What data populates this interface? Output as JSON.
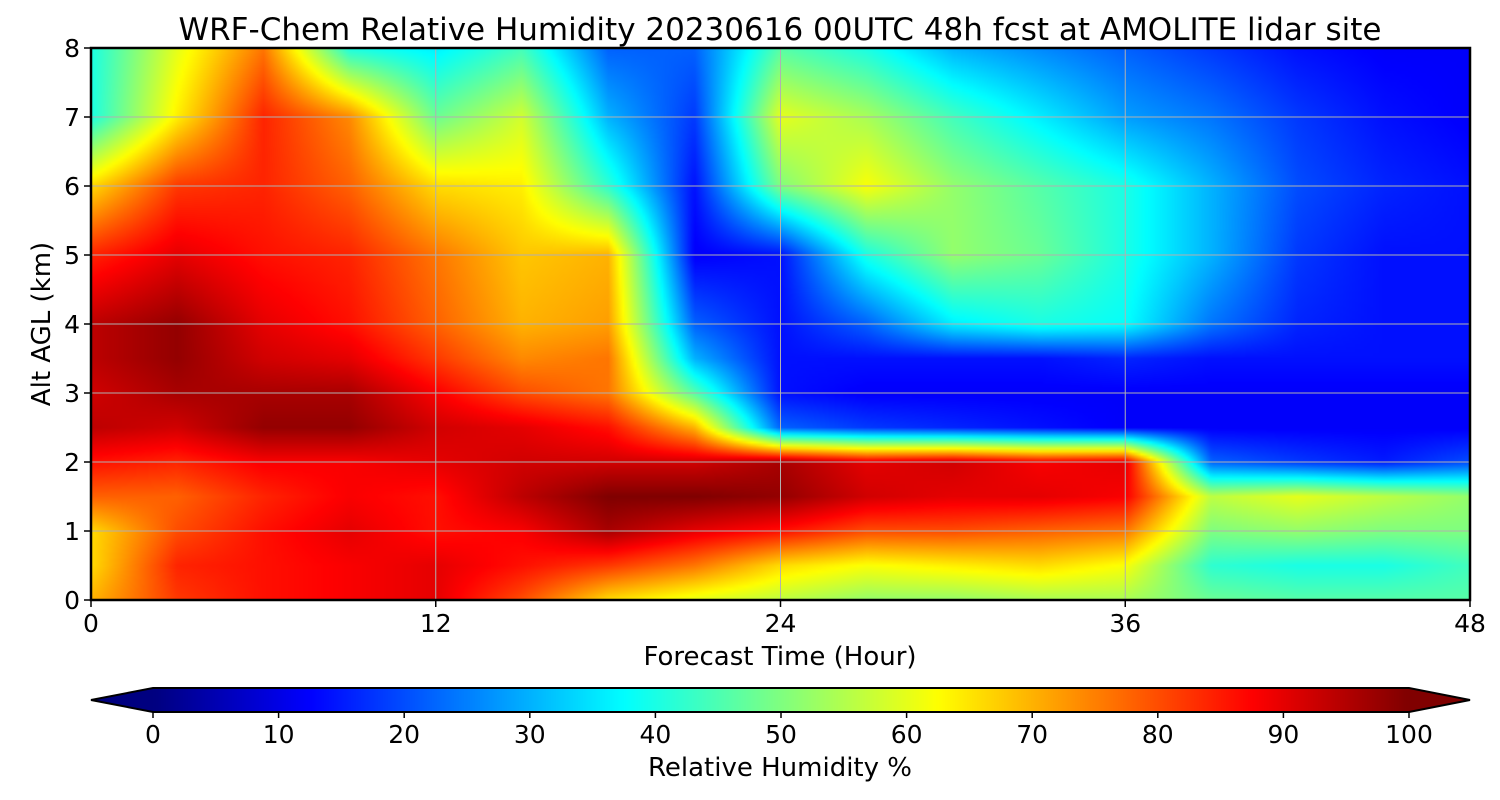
{
  "chart_data": {
    "type": "heatmap",
    "title": "WRF-Chem Relative Humidity 20230616 00UTC 48h fcst at AMOLITE lidar site",
    "xlabel": "Forecast Time (Hour)",
    "ylabel": "Alt AGL (km)",
    "xlim": [
      0,
      48
    ],
    "ylim": [
      0,
      8
    ],
    "xticks": [
      "0",
      "12",
      "24",
      "36",
      "48"
    ],
    "yticks": [
      "0",
      "1",
      "2",
      "3",
      "4",
      "5",
      "6",
      "7",
      "8"
    ],
    "grid": true,
    "colormap": "jet",
    "colorbar": {
      "label": "Relative Humidity %",
      "range": [
        0,
        100
      ],
      "extend": "both",
      "orientation": "horizontal",
      "placement": "bottom",
      "ticks": [
        "0",
        "10",
        "20",
        "30",
        "40",
        "50",
        "60",
        "70",
        "80",
        "90",
        "100"
      ]
    },
    "x": [
      0,
      3,
      6,
      9,
      12,
      15,
      18,
      21,
      24,
      27,
      30,
      33,
      36,
      39,
      42,
      45,
      48
    ],
    "y": [
      0,
      0.5,
      1,
      1.5,
      2,
      2.5,
      3,
      3.5,
      4,
      5,
      6,
      7,
      8
    ],
    "values": [
      [
        70,
        82,
        86,
        88,
        90,
        80,
        66,
        60,
        56,
        52,
        52,
        54,
        54,
        48,
        46,
        46,
        46
      ],
      [
        66,
        84,
        86,
        88,
        90,
        86,
        82,
        76,
        66,
        62,
        64,
        66,
        62,
        42,
        40,
        40,
        44
      ],
      [
        66,
        80,
        86,
        90,
        86,
        88,
        96,
        90,
        86,
        80,
        80,
        78,
        76,
        50,
        52,
        50,
        50
      ],
      [
        78,
        78,
        84,
        88,
        86,
        94,
        100,
        100,
        98,
        92,
        90,
        90,
        88,
        56,
        60,
        56,
        52
      ],
      [
        86,
        84,
        88,
        88,
        90,
        92,
        92,
        92,
        96,
        90,
        92,
        88,
        90,
        22,
        18,
        15,
        20
      ],
      [
        94,
        92,
        98,
        98,
        92,
        90,
        86,
        70,
        22,
        18,
        16,
        14,
        12,
        12,
        12,
        12,
        12
      ],
      [
        92,
        96,
        96,
        96,
        88,
        80,
        76,
        46,
        14,
        12,
        12,
        12,
        12,
        12,
        12,
        12,
        12
      ],
      [
        94,
        98,
        92,
        90,
        82,
        74,
        76,
        30,
        14,
        14,
        14,
        14,
        16,
        14,
        14,
        14,
        14
      ],
      [
        94,
        98,
        90,
        86,
        78,
        70,
        72,
        22,
        14,
        22,
        36,
        40,
        38,
        24,
        16,
        14,
        14
      ],
      [
        84,
        90,
        86,
        84,
        76,
        68,
        70,
        12,
        14,
        40,
        52,
        48,
        40,
        30,
        18,
        14,
        14
      ],
      [
        66,
        82,
        84,
        78,
        66,
        64,
        42,
        14,
        50,
        62,
        52,
        46,
        40,
        30,
        20,
        16,
        14
      ],
      [
        40,
        64,
        84,
        74,
        48,
        58,
        30,
        18,
        60,
        54,
        44,
        36,
        28,
        24,
        18,
        14,
        12
      ],
      [
        40,
        60,
        76,
        40,
        36,
        44,
        22,
        22,
        46,
        40,
        30,
        26,
        22,
        18,
        14,
        12,
        12
      ]
    ]
  }
}
